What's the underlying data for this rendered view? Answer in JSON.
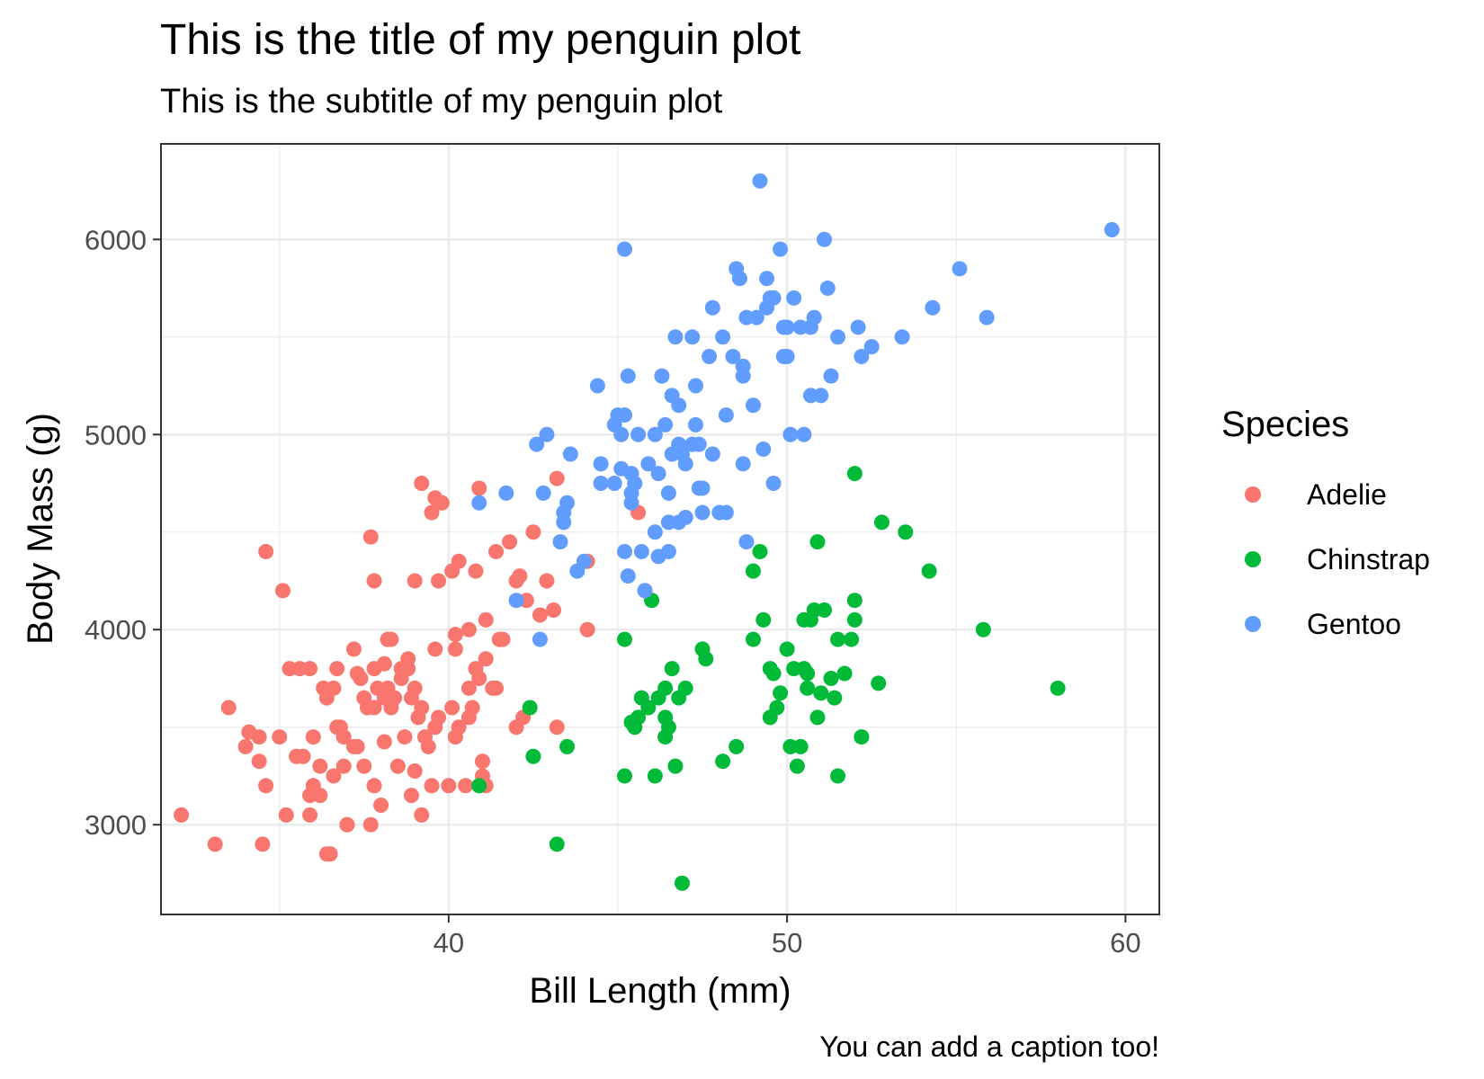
{
  "chart_data": {
    "type": "scatter",
    "title": "This is the title of my penguin plot",
    "subtitle": "This is the subtitle of my penguin plot",
    "caption": "You can add a caption too!",
    "xlabel": "Bill Length (mm)",
    "ylabel": "Body Mass (g)",
    "xlim": [
      31.5,
      61.0
    ],
    "ylim": [
      2540,
      6490
    ],
    "x_ticks": [
      40,
      50,
      60
    ],
    "y_ticks": [
      3000,
      4000,
      5000,
      6000
    ],
    "grid": true,
    "legend": {
      "title": "Species",
      "position": "right"
    },
    "series": [
      {
        "name": "Adelie",
        "color": "#F8766D",
        "points": [
          [
            32.1,
            3050
          ],
          [
            33.1,
            2900
          ],
          [
            33.5,
            3600
          ],
          [
            34.0,
            3400
          ],
          [
            34.1,
            3475
          ],
          [
            34.4,
            3325
          ],
          [
            34.5,
            2900
          ],
          [
            34.6,
            3200
          ],
          [
            34.6,
            4400
          ],
          [
            35.0,
            3450
          ],
          [
            35.1,
            4200
          ],
          [
            35.2,
            3050
          ],
          [
            35.3,
            3800
          ],
          [
            35.5,
            3350
          ],
          [
            35.7,
            3350
          ],
          [
            35.9,
            3050
          ],
          [
            35.9,
            3800
          ],
          [
            36.0,
            3450
          ],
          [
            36.2,
            3300
          ],
          [
            36.3,
            3700
          ],
          [
            36.4,
            2850
          ],
          [
            36.5,
            2850
          ],
          [
            36.6,
            3700
          ],
          [
            36.7,
            3800
          ],
          [
            36.8,
            3500
          ],
          [
            37.0,
            3000
          ],
          [
            37.2,
            3900
          ],
          [
            37.3,
            3775
          ],
          [
            37.5,
            3650
          ],
          [
            37.6,
            3600
          ],
          [
            37.7,
            4475
          ],
          [
            37.8,
            4250
          ],
          [
            37.8,
            3800
          ],
          [
            37.9,
            3700
          ],
          [
            38.1,
            3825
          ],
          [
            38.2,
            3950
          ],
          [
            38.3,
            3950
          ],
          [
            38.6,
            3800
          ],
          [
            38.7,
            3450
          ],
          [
            38.8,
            3800
          ],
          [
            38.9,
            3650
          ],
          [
            39.0,
            3275
          ],
          [
            39.0,
            4250
          ],
          [
            39.1,
            3550
          ],
          [
            39.2,
            3600
          ],
          [
            39.3,
            3450
          ],
          [
            39.5,
            4600
          ],
          [
            39.6,
            4675
          ],
          [
            39.6,
            3900
          ],
          [
            39.7,
            4250
          ],
          [
            39.8,
            4650
          ],
          [
            40.1,
            4300
          ],
          [
            40.2,
            3975
          ],
          [
            40.2,
            3900
          ],
          [
            40.3,
            4350
          ],
          [
            40.5,
            3200
          ],
          [
            40.6,
            3550
          ],
          [
            40.6,
            4000
          ],
          [
            40.8,
            4300
          ],
          [
            40.9,
            4725
          ],
          [
            41.0,
            3325
          ],
          [
            41.1,
            4050
          ],
          [
            41.1,
            3200
          ],
          [
            41.3,
            3700
          ],
          [
            41.4,
            4400
          ],
          [
            41.5,
            3950
          ],
          [
            41.6,
            3950
          ],
          [
            41.8,
            4450
          ],
          [
            42.0,
            4250
          ],
          [
            42.1,
            4275
          ],
          [
            42.2,
            3550
          ],
          [
            42.3,
            4150
          ],
          [
            42.5,
            4500
          ],
          [
            42.7,
            4075
          ],
          [
            42.9,
            4250
          ],
          [
            43.1,
            4100
          ],
          [
            43.2,
            4775
          ],
          [
            44.1,
            4000
          ],
          [
            44.1,
            4350
          ],
          [
            45.6,
            4600
          ],
          [
            35.9,
            3150
          ],
          [
            36.2,
            3150
          ],
          [
            36.6,
            3250
          ],
          [
            36.9,
            3450
          ],
          [
            37.2,
            3400
          ],
          [
            37.5,
            3300
          ],
          [
            37.7,
            3000
          ],
          [
            37.8,
            3200
          ],
          [
            38.0,
            3100
          ],
          [
            38.1,
            3425
          ],
          [
            38.5,
            3300
          ],
          [
            38.9,
            3150
          ],
          [
            39.2,
            3050
          ],
          [
            39.5,
            3200
          ],
          [
            39.6,
            3500
          ],
          [
            40.0,
            3200
          ],
          [
            40.2,
            3450
          ],
          [
            40.7,
            3600
          ],
          [
            41.0,
            3250
          ],
          [
            42.0,
            3500
          ],
          [
            36.0,
            3200
          ],
          [
            36.4,
            3650
          ],
          [
            36.9,
            3300
          ],
          [
            37.3,
            3400
          ],
          [
            37.6,
            3600
          ],
          [
            37.8,
            3600
          ],
          [
            38.1,
            3650
          ],
          [
            38.2,
            3700
          ],
          [
            38.6,
            3750
          ],
          [
            38.8,
            3850
          ],
          [
            39.0,
            3700
          ],
          [
            39.7,
            3550
          ],
          [
            40.3,
            3500
          ],
          [
            40.6,
            3700
          ],
          [
            40.9,
            3750
          ],
          [
            41.1,
            3850
          ],
          [
            41.4,
            3700
          ],
          [
            43.2,
            3500
          ],
          [
            45.8,
            4200
          ],
          [
            35.6,
            3800
          ],
          [
            34.4,
            3450
          ],
          [
            36.7,
            3500
          ],
          [
            37.0,
            3000
          ],
          [
            37.4,
            3750
          ],
          [
            38.3,
            3600
          ],
          [
            38.4,
            3650
          ],
          [
            39.2,
            4750
          ],
          [
            39.4,
            3400
          ],
          [
            40.1,
            3600
          ],
          [
            40.8,
            3800
          ]
        ]
      },
      {
        "name": "Chinstrap",
        "color": "#00BA38",
        "points": [
          [
            40.9,
            3200
          ],
          [
            42.4,
            3600
          ],
          [
            42.5,
            3350
          ],
          [
            43.2,
            2900
          ],
          [
            43.5,
            3400
          ],
          [
            45.2,
            3250
          ],
          [
            45.2,
            3950
          ],
          [
            45.4,
            3525
          ],
          [
            45.5,
            3500
          ],
          [
            45.6,
            3550
          ],
          [
            45.7,
            3650
          ],
          [
            45.9,
            3600
          ],
          [
            46.0,
            4150
          ],
          [
            46.1,
            3250
          ],
          [
            46.2,
            3650
          ],
          [
            46.4,
            3450
          ],
          [
            46.4,
            3700
          ],
          [
            46.5,
            3500
          ],
          [
            46.6,
            3800
          ],
          [
            46.7,
            3300
          ],
          [
            46.8,
            3650
          ],
          [
            46.9,
            2700
          ],
          [
            47.0,
            3700
          ],
          [
            47.5,
            3900
          ],
          [
            47.6,
            3850
          ],
          [
            48.1,
            3325
          ],
          [
            48.5,
            3400
          ],
          [
            49.0,
            4300
          ],
          [
            49.0,
            3950
          ],
          [
            49.2,
            4400
          ],
          [
            49.3,
            4050
          ],
          [
            49.5,
            3800
          ],
          [
            49.6,
            3775
          ],
          [
            49.7,
            3600
          ],
          [
            49.8,
            3675
          ],
          [
            50.0,
            3900
          ],
          [
            50.1,
            3400
          ],
          [
            50.2,
            3800
          ],
          [
            50.3,
            3300
          ],
          [
            50.4,
            3400
          ],
          [
            50.5,
            4050
          ],
          [
            50.6,
            3775
          ],
          [
            50.7,
            4050
          ],
          [
            50.8,
            4100
          ],
          [
            50.9,
            3550
          ],
          [
            51.0,
            3675
          ],
          [
            51.1,
            4100
          ],
          [
            51.3,
            3750
          ],
          [
            51.4,
            3650
          ],
          [
            51.5,
            3250
          ],
          [
            51.5,
            3950
          ],
          [
            51.7,
            3775
          ],
          [
            51.9,
            3950
          ],
          [
            52.0,
            4050
          ],
          [
            52.0,
            4800
          ],
          [
            52.0,
            4150
          ],
          [
            52.2,
            3450
          ],
          [
            52.7,
            3725
          ],
          [
            52.8,
            4550
          ],
          [
            53.5,
            4500
          ],
          [
            54.2,
            4300
          ],
          [
            55.8,
            4000
          ],
          [
            58.0,
            3700
          ],
          [
            50.9,
            4450
          ],
          [
            50.5,
            3800
          ],
          [
            49.5,
            3550
          ],
          [
            46.4,
            3550
          ],
          [
            50.6,
            3700
          ]
        ]
      },
      {
        "name": "Gentoo",
        "color": "#619CFF",
        "points": [
          [
            40.9,
            4650
          ],
          [
            41.7,
            4700
          ],
          [
            42.0,
            4150
          ],
          [
            42.6,
            4950
          ],
          [
            42.7,
            3950
          ],
          [
            42.8,
            4700
          ],
          [
            42.9,
            5000
          ],
          [
            43.3,
            4450
          ],
          [
            43.4,
            4600
          ],
          [
            43.5,
            4650
          ],
          [
            43.6,
            4900
          ],
          [
            43.8,
            4300
          ],
          [
            44.0,
            4350
          ],
          [
            44.4,
            5250
          ],
          [
            44.5,
            4850
          ],
          [
            44.9,
            4750
          ],
          [
            45.0,
            5100
          ],
          [
            45.1,
            5000
          ],
          [
            45.2,
            4400
          ],
          [
            45.2,
            5950
          ],
          [
            45.3,
            5300
          ],
          [
            45.4,
            4800
          ],
          [
            45.5,
            4750
          ],
          [
            45.6,
            5000
          ],
          [
            45.7,
            4400
          ],
          [
            45.8,
            4200
          ],
          [
            46.1,
            4500
          ],
          [
            46.2,
            4800
          ],
          [
            46.3,
            5300
          ],
          [
            46.4,
            5050
          ],
          [
            46.5,
            4550
          ],
          [
            46.6,
            5200
          ],
          [
            46.8,
            5150
          ],
          [
            47.0,
            4850
          ],
          [
            47.2,
            4950
          ],
          [
            47.3,
            5250
          ],
          [
            47.4,
            4725
          ],
          [
            47.5,
            4600
          ],
          [
            47.7,
            5400
          ],
          [
            47.8,
            5650
          ],
          [
            48.1,
            5500
          ],
          [
            48.2,
            4600
          ],
          [
            48.4,
            5400
          ],
          [
            48.5,
            5850
          ],
          [
            48.6,
            5800
          ],
          [
            48.7,
            5350
          ],
          [
            48.8,
            5600
          ],
          [
            49.0,
            5150
          ],
          [
            49.1,
            5600
          ],
          [
            49.2,
            6300
          ],
          [
            49.3,
            4925
          ],
          [
            49.4,
            5650
          ],
          [
            49.5,
            5700
          ],
          [
            49.6,
            5700
          ],
          [
            49.8,
            5950
          ],
          [
            49.9,
            5400
          ],
          [
            50.0,
            5550
          ],
          [
            50.1,
            5000
          ],
          [
            50.2,
            5700
          ],
          [
            50.4,
            5550
          ],
          [
            50.5,
            5000
          ],
          [
            50.7,
            5550
          ],
          [
            50.8,
            5600
          ],
          [
            51.1,
            6000
          ],
          [
            51.3,
            5300
          ],
          [
            51.5,
            5500
          ],
          [
            52.1,
            5550
          ],
          [
            52.2,
            5400
          ],
          [
            52.5,
            5450
          ],
          [
            53.4,
            5500
          ],
          [
            54.3,
            5650
          ],
          [
            55.1,
            5850
          ],
          [
            55.9,
            5600
          ],
          [
            59.6,
            6050
          ],
          [
            48.8,
            4450
          ],
          [
            49.9,
            5550
          ],
          [
            48.7,
            4850
          ],
          [
            47.5,
            4725
          ],
          [
            46.9,
            4900
          ],
          [
            45.4,
            4700
          ],
          [
            44.5,
            4750
          ],
          [
            45.1,
            4825
          ],
          [
            46.5,
            4700
          ],
          [
            47.8,
            4900
          ],
          [
            49.6,
            4750
          ],
          [
            43.4,
            4550
          ],
          [
            46.2,
            4375
          ],
          [
            46.8,
            4550
          ],
          [
            47.2,
            5500
          ],
          [
            50.0,
            5400
          ],
          [
            51.0,
            5200
          ],
          [
            47.0,
            4575
          ],
          [
            48.7,
            5300
          ],
          [
            45.2,
            5100
          ],
          [
            49.4,
            5800
          ],
          [
            51.2,
            5750
          ],
          [
            50.7,
            5200
          ],
          [
            48.2,
            5100
          ],
          [
            46.5,
            4400
          ],
          [
            45.4,
            4650
          ],
          [
            44.9,
            5050
          ],
          [
            45.3,
            4275
          ],
          [
            46.7,
            5500
          ],
          [
            46.6,
            4900
          ],
          [
            46.1,
            5000
          ],
          [
            47.3,
            5050
          ],
          [
            46.8,
            4950
          ],
          [
            47.4,
            4950
          ],
          [
            45.9,
            4850
          ],
          [
            48.0,
            4600
          ]
        ]
      }
    ]
  }
}
